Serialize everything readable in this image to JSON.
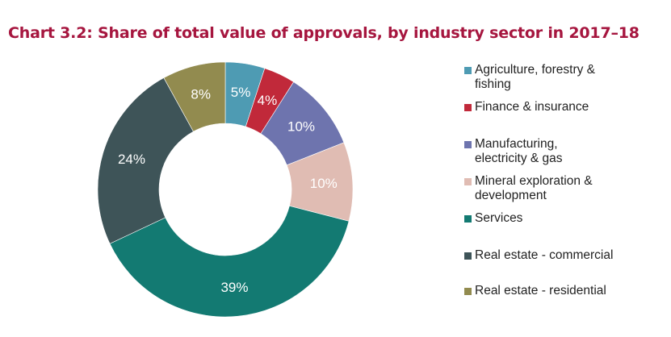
{
  "chart_data": {
    "type": "pie",
    "variant": "donut",
    "title": "Chart 3.2: Share of total value of approvals, by industry sector in 2017–18",
    "slices": [
      {
        "label": "Agriculture, forestry & fishing",
        "value": 5,
        "display": "5%",
        "color": "#4e9bb3"
      },
      {
        "label": "Finance & insurance",
        "value": 4,
        "display": "4%",
        "color": "#c1293a"
      },
      {
        "label": "Manufacturing, electricity & gas",
        "value": 10,
        "display": "10%",
        "color": "#6e74ae"
      },
      {
        "label": "Mineral exploration & development",
        "value": 10,
        "display": "10%",
        "color": "#e0bcb3"
      },
      {
        "label": "Services",
        "value": 39,
        "display": "39%",
        "color": "#137a72"
      },
      {
        "label": "Real estate - commercial",
        "value": 24,
        "display": "24%",
        "color": "#3e5458"
      },
      {
        "label": "Real estate - residential",
        "value": 8,
        "display": "8%",
        "color": "#928b4f"
      }
    ],
    "legend_labels": [
      "Agriculture, forestry &\nfishing",
      "Finance & insurance",
      "Manufacturing,\nelectricity & gas",
      "Mineral exploration &\ndevelopment",
      "Services",
      "Real estate - commercial",
      "Real estate - residential"
    ],
    "legend_position": "right",
    "start": "top",
    "direction": "clockwise"
  }
}
